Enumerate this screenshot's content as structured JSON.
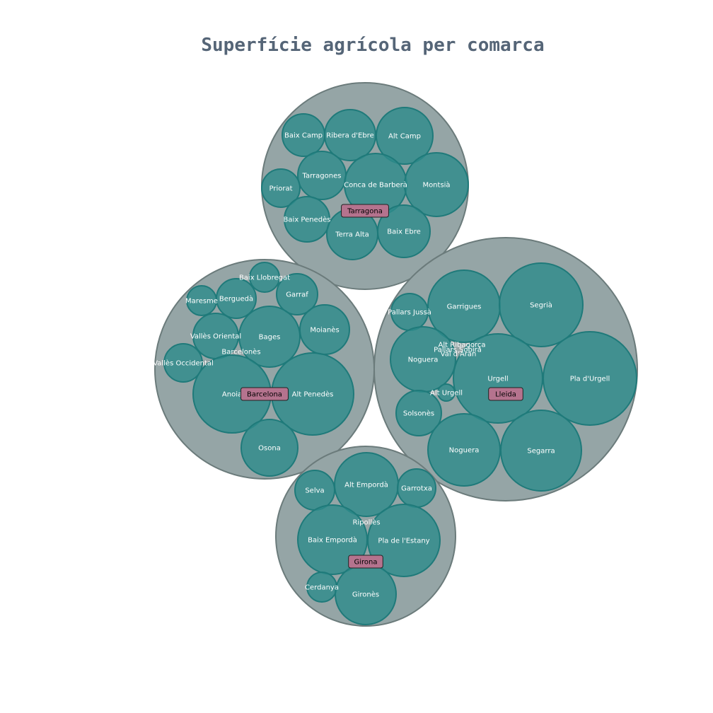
{
  "chart_data": {
    "type": "circle-packing",
    "title": "Superfície agrícola per comarca",
    "colors": {
      "parent_fill": "#95a5a6",
      "parent_stroke": "#6b7b7b",
      "child_fill": "#2e8b8b",
      "child_stroke": "#1f7a7a",
      "province_label_bg": "#b5738e"
    },
    "groups": [
      {
        "name": "Tarragona",
        "children": [
          {
            "name": "Baix Camp"
          },
          {
            "name": "Ribera d'Ebre"
          },
          {
            "name": "Alt Camp"
          },
          {
            "name": "Tarragones"
          },
          {
            "name": "Priorat"
          },
          {
            "name": "Conca de Barberà"
          },
          {
            "name": "Montsià"
          },
          {
            "name": "Baix Penedès"
          },
          {
            "name": "Terra Alta"
          },
          {
            "name": "Baix Ebre"
          }
        ]
      },
      {
        "name": "Barcelona",
        "children": [
          {
            "name": "Baix Llobregat"
          },
          {
            "name": "Garraf"
          },
          {
            "name": "Maresme"
          },
          {
            "name": "Berguedà"
          },
          {
            "name": "Vallès Oriental"
          },
          {
            "name": "Bages"
          },
          {
            "name": "Moianès"
          },
          {
            "name": "Barcelonès"
          },
          {
            "name": "Vallès Occidental"
          },
          {
            "name": "Anoia"
          },
          {
            "name": "Alt Penedès"
          },
          {
            "name": "Osona"
          }
        ]
      },
      {
        "name": "Lleida",
        "children": [
          {
            "name": "Pallars Jussà"
          },
          {
            "name": "Garrigues"
          },
          {
            "name": "Segrià"
          },
          {
            "name": "Alt Ribagorça"
          },
          {
            "name": "Pallars Sobirà"
          },
          {
            "name": "Val d'Aran"
          },
          {
            "name": "Noguera"
          },
          {
            "name": "Urgell"
          },
          {
            "name": "Pla d'Urgell"
          },
          {
            "name": "Alt Urgell"
          },
          {
            "name": "Solsonès"
          },
          {
            "name": "Noguera"
          },
          {
            "name": "Segarra"
          }
        ]
      },
      {
        "name": "Girona",
        "children": [
          {
            "name": "Selva"
          },
          {
            "name": "Alt Empordà"
          },
          {
            "name": "Garrotxa"
          },
          {
            "name": "Ripollès"
          },
          {
            "name": "Baix Empordà"
          },
          {
            "name": "Pla de l'Estany"
          },
          {
            "name": "Cerdanya"
          },
          {
            "name": "Gironès"
          }
        ]
      }
    ]
  }
}
